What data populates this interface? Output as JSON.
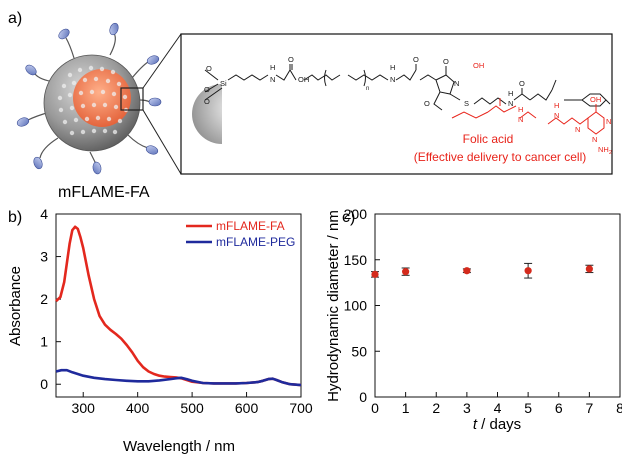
{
  "panel_a": {
    "label": "a)",
    "particle_label": "mFLAME-FA",
    "chem_labels": {
      "si": "Si",
      "h1": "H",
      "n1": "N",
      "o1": "O",
      "n_sub": "n",
      "h2": "H",
      "n2": "N",
      "o2": "O",
      "o3": "O",
      "n3": "N",
      "s1": "S",
      "h3": "H",
      "n3b": "N",
      "oh": "OH",
      "o4": "O",
      "h4": "H",
      "n4": "N",
      "h5": "H",
      "n5": "N",
      "oh2": "OH",
      "nh2": "NH",
      "nh2_sub": "2",
      "n6": "N",
      "n7": "N",
      "n8": "N"
    },
    "folic_acid_title": "Folic acid",
    "folic_acid_note": "(Effective delivery to cancer cell)",
    "colors": {
      "folic": "#e8231a",
      "structure": "#1a1a1a"
    }
  },
  "chart_data": [
    {
      "panel": "b)",
      "type": "line",
      "xlabel": "Wavelength / nm",
      "ylabel": "Absorbance",
      "xlim": [
        250,
        700
      ],
      "ylim": [
        -0.3,
        4.0
      ],
      "xticks": [
        300,
        400,
        500,
        600,
        700
      ],
      "yticks": [
        0,
        1,
        2,
        3,
        4
      ],
      "legend_position": "top-right",
      "grid": false,
      "series": [
        {
          "name": "mFLAME-FA",
          "color": "#e3281e",
          "x": [
            250,
            258,
            265,
            270,
            275,
            280,
            285,
            290,
            295,
            300,
            310,
            320,
            330,
            340,
            350,
            360,
            370,
            380,
            390,
            400,
            410,
            420,
            430,
            440,
            450,
            460,
            470,
            480,
            490,
            500,
            520,
            540,
            560,
            580,
            600,
            620,
            630,
            640,
            648,
            655,
            665,
            680,
            700
          ],
          "y": [
            1.95,
            2.05,
            2.4,
            2.85,
            3.3,
            3.62,
            3.7,
            3.65,
            3.45,
            3.2,
            2.55,
            2.0,
            1.6,
            1.4,
            1.28,
            1.18,
            1.07,
            0.92,
            0.75,
            0.55,
            0.4,
            0.3,
            0.24,
            0.2,
            0.18,
            0.17,
            0.16,
            0.14,
            0.1,
            0.06,
            0.03,
            0.02,
            0.02,
            0.02,
            0.03,
            0.05,
            0.08,
            0.12,
            0.13,
            0.1,
            0.05,
            0.0,
            -0.02
          ]
        },
        {
          "name": "mFLAME-PEG",
          "color": "#1f2a9c",
          "x": [
            250,
            260,
            270,
            280,
            290,
            300,
            320,
            340,
            360,
            380,
            400,
            420,
            440,
            460,
            470,
            480,
            490,
            500,
            520,
            540,
            560,
            580,
            600,
            620,
            630,
            640,
            648,
            655,
            665,
            680,
            700
          ],
          "y": [
            0.3,
            0.33,
            0.33,
            0.28,
            0.24,
            0.2,
            0.15,
            0.12,
            0.1,
            0.08,
            0.07,
            0.07,
            0.09,
            0.12,
            0.14,
            0.15,
            0.12,
            0.08,
            0.03,
            0.02,
            0.02,
            0.02,
            0.03,
            0.05,
            0.08,
            0.12,
            0.13,
            0.1,
            0.05,
            0.0,
            -0.02
          ]
        }
      ]
    },
    {
      "panel": "c)",
      "type": "scatter",
      "xlabel_italic": "t",
      "xlabel_rest": " / days",
      "ylabel": "Hydrodynamic diameter / nm",
      "xlim": [
        0,
        8
      ],
      "ylim": [
        0,
        200
      ],
      "xticks": [
        0,
        1,
        2,
        3,
        4,
        5,
        6,
        7,
        8
      ],
      "yticks": [
        0,
        50,
        100,
        150,
        200
      ],
      "grid": false,
      "series": [
        {
          "color": "#d42a1c",
          "x": [
            0,
            1,
            3,
            5,
            7
          ],
          "y": [
            134,
            137,
            138,
            138,
            140
          ],
          "err": [
            3,
            4,
            2,
            8,
            4
          ]
        }
      ]
    }
  ]
}
